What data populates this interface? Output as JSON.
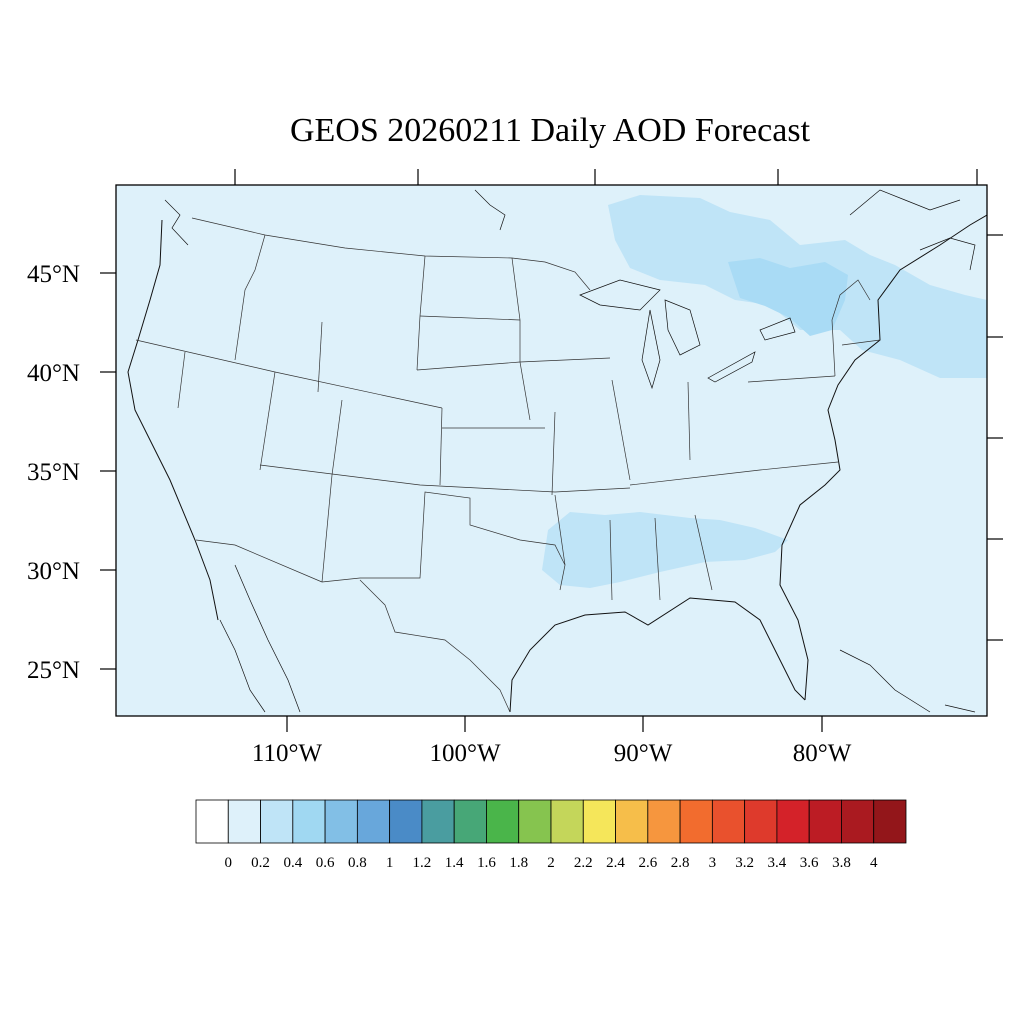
{
  "title": "GEOS 20260211 Daily AOD Forecast",
  "map": {
    "background_color": "#def1fa",
    "aerosol_patch_colors": [
      "#bfe4f7",
      "#a9dbf5"
    ],
    "lat_labels": [
      "45°N",
      "40°N",
      "35°N",
      "30°N",
      "25°N"
    ],
    "lon_labels": [
      "110°W",
      "100°W",
      "90°W",
      "80°W"
    ]
  },
  "colorbar": {
    "colors": [
      "#ffffff",
      "#def1fa",
      "#bfe4f7",
      "#a0d8f2",
      "#82bfe6",
      "#68a7db",
      "#4a8bc7",
      "#4a9da0",
      "#47a777",
      "#4ab54a",
      "#86c44f",
      "#c4d65a",
      "#f5e65a",
      "#f6be4a",
      "#f6963e",
      "#f26c2e",
      "#e9512d",
      "#de3a2c",
      "#d42229",
      "#bc1c24",
      "#aa1a20",
      "#93161a"
    ],
    "labels": [
      "0",
      "0.2",
      "0.4",
      "0.6",
      "0.8",
      "1",
      "1.2",
      "1.4",
      "1.6",
      "1.8",
      "2",
      "2.2",
      "2.4",
      "2.6",
      "2.8",
      "3",
      "3.2",
      "3.4",
      "3.6",
      "3.8",
      "4"
    ]
  }
}
